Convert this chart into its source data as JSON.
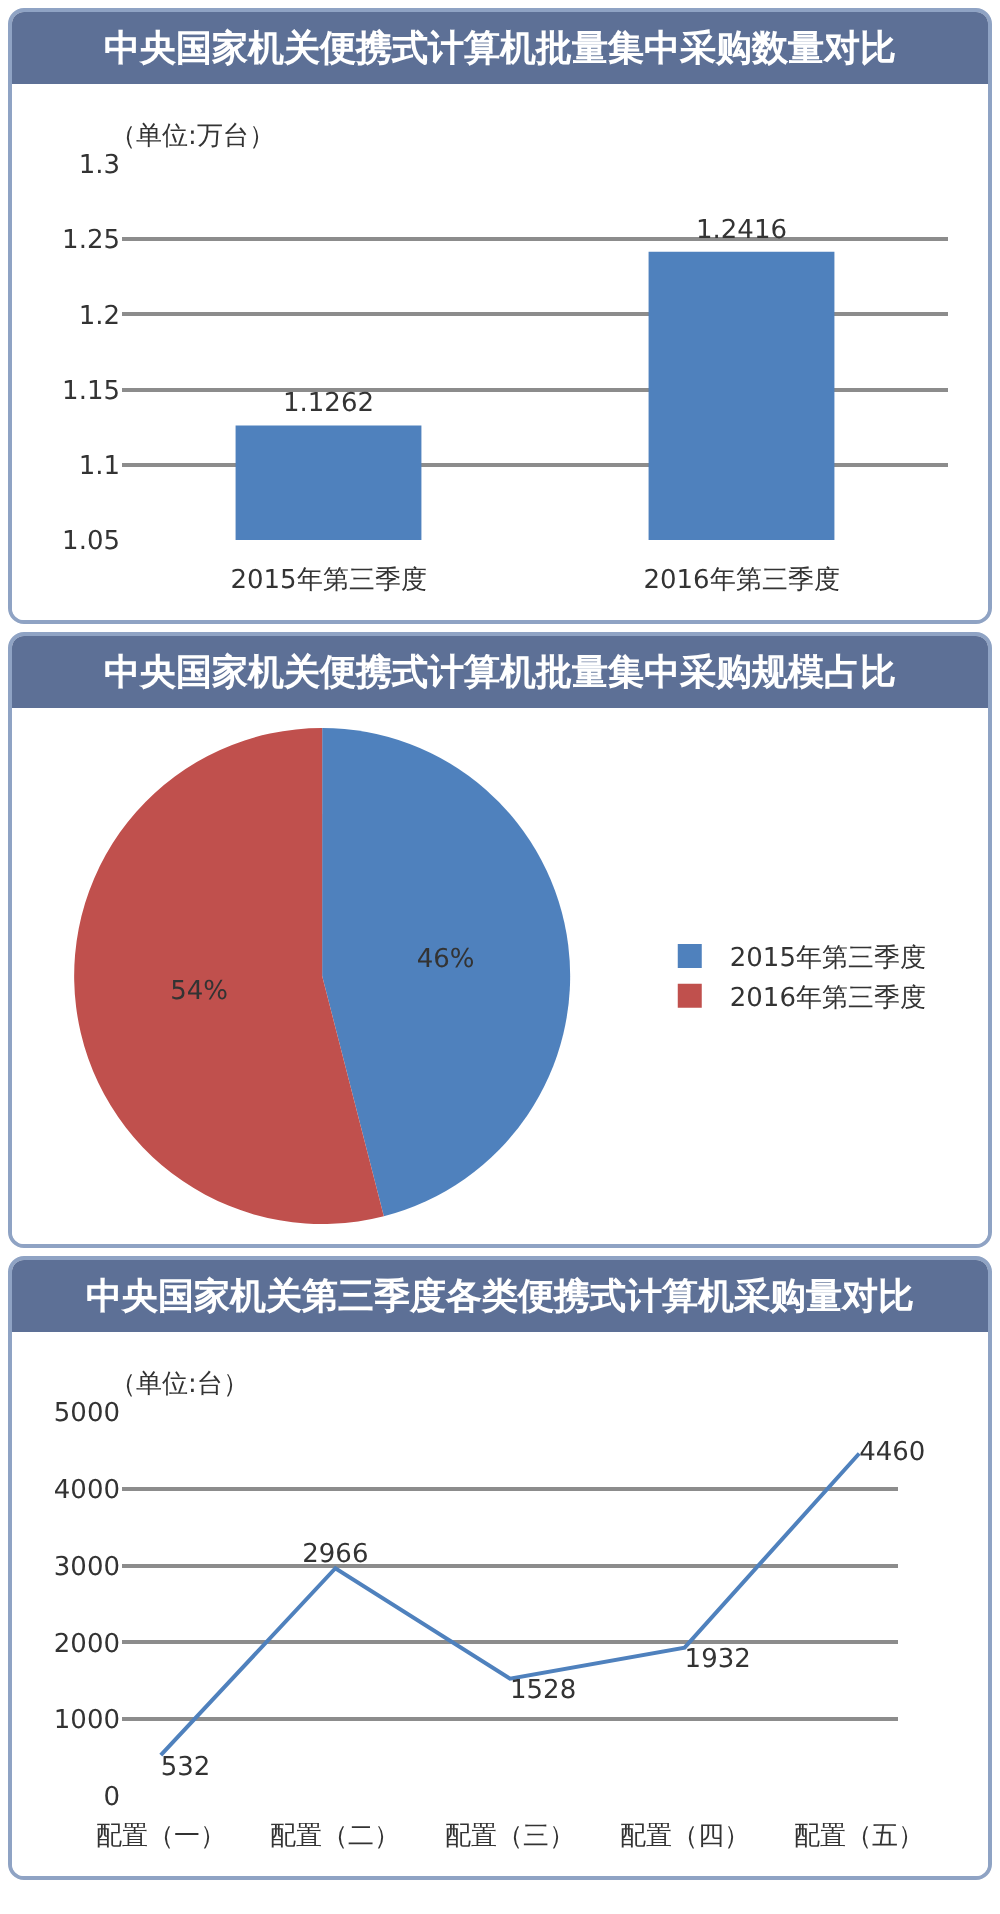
{
  "chart_data": [
    {
      "type": "bar",
      "title": "中央国家机关便携式计算机批量集中采购数量对比",
      "ylabel": "（单位:万台）",
      "categories": [
        "2015年第三季度",
        "2016年第三季度"
      ],
      "values": [
        1.1262,
        1.2416
      ],
      "color": "#4f81bd",
      "ylim": [
        1.05,
        1.3
      ],
      "yticks": [
        1.05,
        1.1,
        1.15,
        1.2,
        1.25,
        1.3
      ],
      "grid": "y",
      "data_labels": true
    },
    {
      "type": "pie",
      "title": "中央国家机关便携式计算机批量集中采购规模占比",
      "categories": [
        "2015年第三季度",
        "2016年第三季度"
      ],
      "values": [
        46,
        54
      ],
      "colors": [
        "#4f81bd",
        "#c0504d"
      ],
      "value_labels": [
        "46%",
        "54%"
      ],
      "legend": "right"
    },
    {
      "type": "line",
      "title": "中央国家机关第三季度各类便携式计算机采购量对比",
      "ylabel": "（单位:台）",
      "categories": [
        "配置（一）",
        "配置（二）",
        "配置（三）",
        "配置（四）",
        "配置（五）"
      ],
      "values": [
        532,
        2966,
        1528,
        1932,
        4460
      ],
      "color": "#4f81bd",
      "ylim": [
        0,
        5000
      ],
      "yticks": [
        0,
        1000,
        2000,
        3000,
        4000,
        5000
      ],
      "grid": "y",
      "data_labels": true,
      "marker": "none"
    }
  ]
}
